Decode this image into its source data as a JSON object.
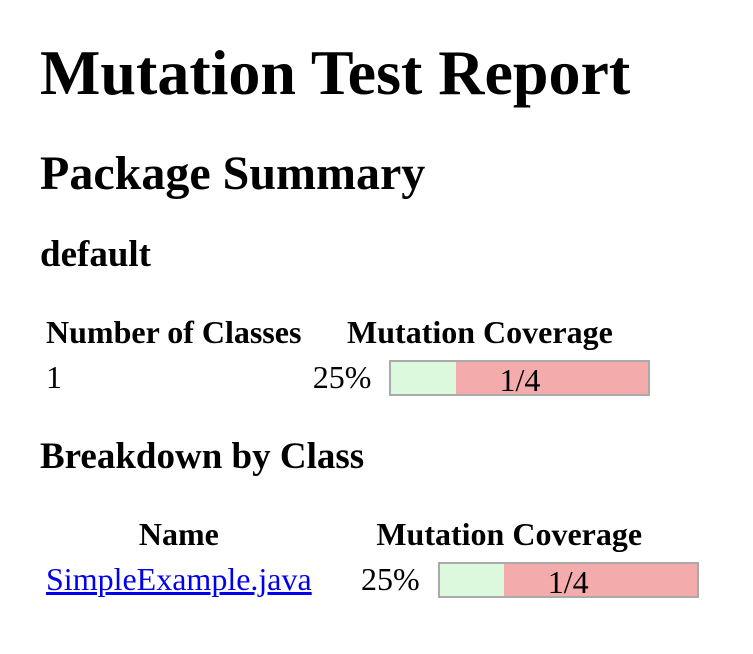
{
  "page": {
    "title": "Mutation Test Report"
  },
  "package_summary": {
    "heading": "Package Summary",
    "package_name": "default",
    "table": {
      "col_classes": "Number of Classes",
      "col_coverage": "Mutation Coverage",
      "row": {
        "number_of_classes": "1",
        "percent": "25%",
        "legend": "1/4",
        "fraction": 0.25
      }
    }
  },
  "breakdown": {
    "heading": "Breakdown by Class",
    "table": {
      "col_name": "Name",
      "col_coverage": "Mutation Coverage",
      "row": {
        "name": "SimpleExample.java",
        "percent": "25%",
        "legend": "1/4",
        "fraction": 0.25
      }
    }
  },
  "colors": {
    "covered_green": "#DDF9DD",
    "uncovered_pink": "#F4ABAB",
    "bar_border": "#AAAAAA",
    "link_blue": "#0000EE"
  }
}
